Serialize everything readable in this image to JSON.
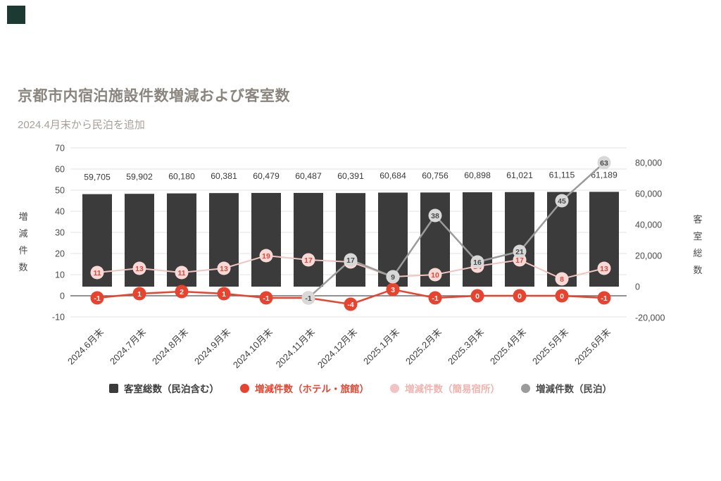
{
  "chart_data": {
    "type": "combo-bar-line",
    "title": "京都市内宿泊施設件数増減および客室数",
    "subtitle": "2024.4月末から民泊を追加",
    "categories": [
      "2024.6月末",
      "2024.7月末",
      "2024.8月末",
      "2024.9月末",
      "2024.10月末",
      "2024.11月末",
      "2024.12月末",
      "2025.1月末",
      "2025.2月末",
      "2025.3月末",
      "2025.4月末",
      "2025.5月末",
      "2025.6月末"
    ],
    "bar_series": {
      "name": "客室総数（民泊含む）",
      "axis": "right",
      "values": [
        59705,
        59902,
        60180,
        60381,
        60479,
        60487,
        60391,
        60684,
        60756,
        60898,
        61021,
        61115,
        61189
      ]
    },
    "line_series": [
      {
        "name": "増減件数（ホテル・旅館）",
        "axis": "left",
        "color_key": "hotel",
        "values": [
          -1,
          1,
          2,
          1,
          -1,
          -1,
          -4,
          3,
          -1,
          0,
          0,
          0,
          -1
        ]
      },
      {
        "name": "増減件数（簡易宿所）",
        "axis": "left",
        "color_key": "kanyado",
        "values": [
          11,
          13,
          11,
          13,
          19,
          17,
          16,
          9,
          10,
          14,
          17,
          8,
          13
        ]
      },
      {
        "name": "増減件数（民泊）",
        "axis": "left",
        "color_key": "minpaku",
        "values": [
          null,
          null,
          null,
          null,
          null,
          -1,
          17,
          9,
          38,
          16,
          21,
          45,
          63
        ]
      }
    ],
    "left_axis": {
      "label": "増減件数",
      "min": -10,
      "max": 70,
      "ticks": [
        -10,
        0,
        10,
        20,
        30,
        40,
        50,
        60,
        70
      ]
    },
    "right_axis": {
      "label": "客室総数",
      "min": -20000,
      "max": 80000,
      "ticks": [
        -20000,
        0,
        20000,
        40000,
        60000,
        80000
      ]
    },
    "grid": true,
    "legend_position": "bottom"
  },
  "legend": {
    "items": [
      {
        "label": "客室総数（民泊含む）",
        "marker": "square",
        "color": "#3b3b3b",
        "text_color": "#3b3b3b"
      },
      {
        "label": "増減件数（ホテル・旅館）",
        "marker": "circle",
        "color": "#e8432e",
        "text_color": "#e8432e"
      },
      {
        "label": "増減件数（簡易宿所）",
        "marker": "circle",
        "color": "#f2c3c0",
        "text_color": "#eeb4af"
      },
      {
        "label": "増減件数（民泊）",
        "marker": "circle",
        "color": "#9b9b9b",
        "text_color": "#4a4a4a"
      }
    ]
  },
  "colors": {
    "bar": "#3b3b3b",
    "bar_label": "#3a3a3a",
    "hotel_line": "#e8432e",
    "kanyado_line": "#f2c3c0",
    "minpaku_line": "#9b9b9b",
    "hotel_label_bg": "#e8432e",
    "hotel_label_text": "#ffffff",
    "kanyado_label_bg": "#f8d9d6",
    "kanyado_label_text": "#e0483a",
    "minpaku_label_bg": "#d8d8d8",
    "minpaku_label_text": "#4a4a4a",
    "grid": "#e3e3e3",
    "zero_line": "#6f6f6f",
    "axis_text": "#4a4a4a",
    "x_label_text": "#3f3f3f",
    "title": "#8a857e",
    "subtitle": "#a5a09a",
    "corner_square": "#1c3a32"
  }
}
